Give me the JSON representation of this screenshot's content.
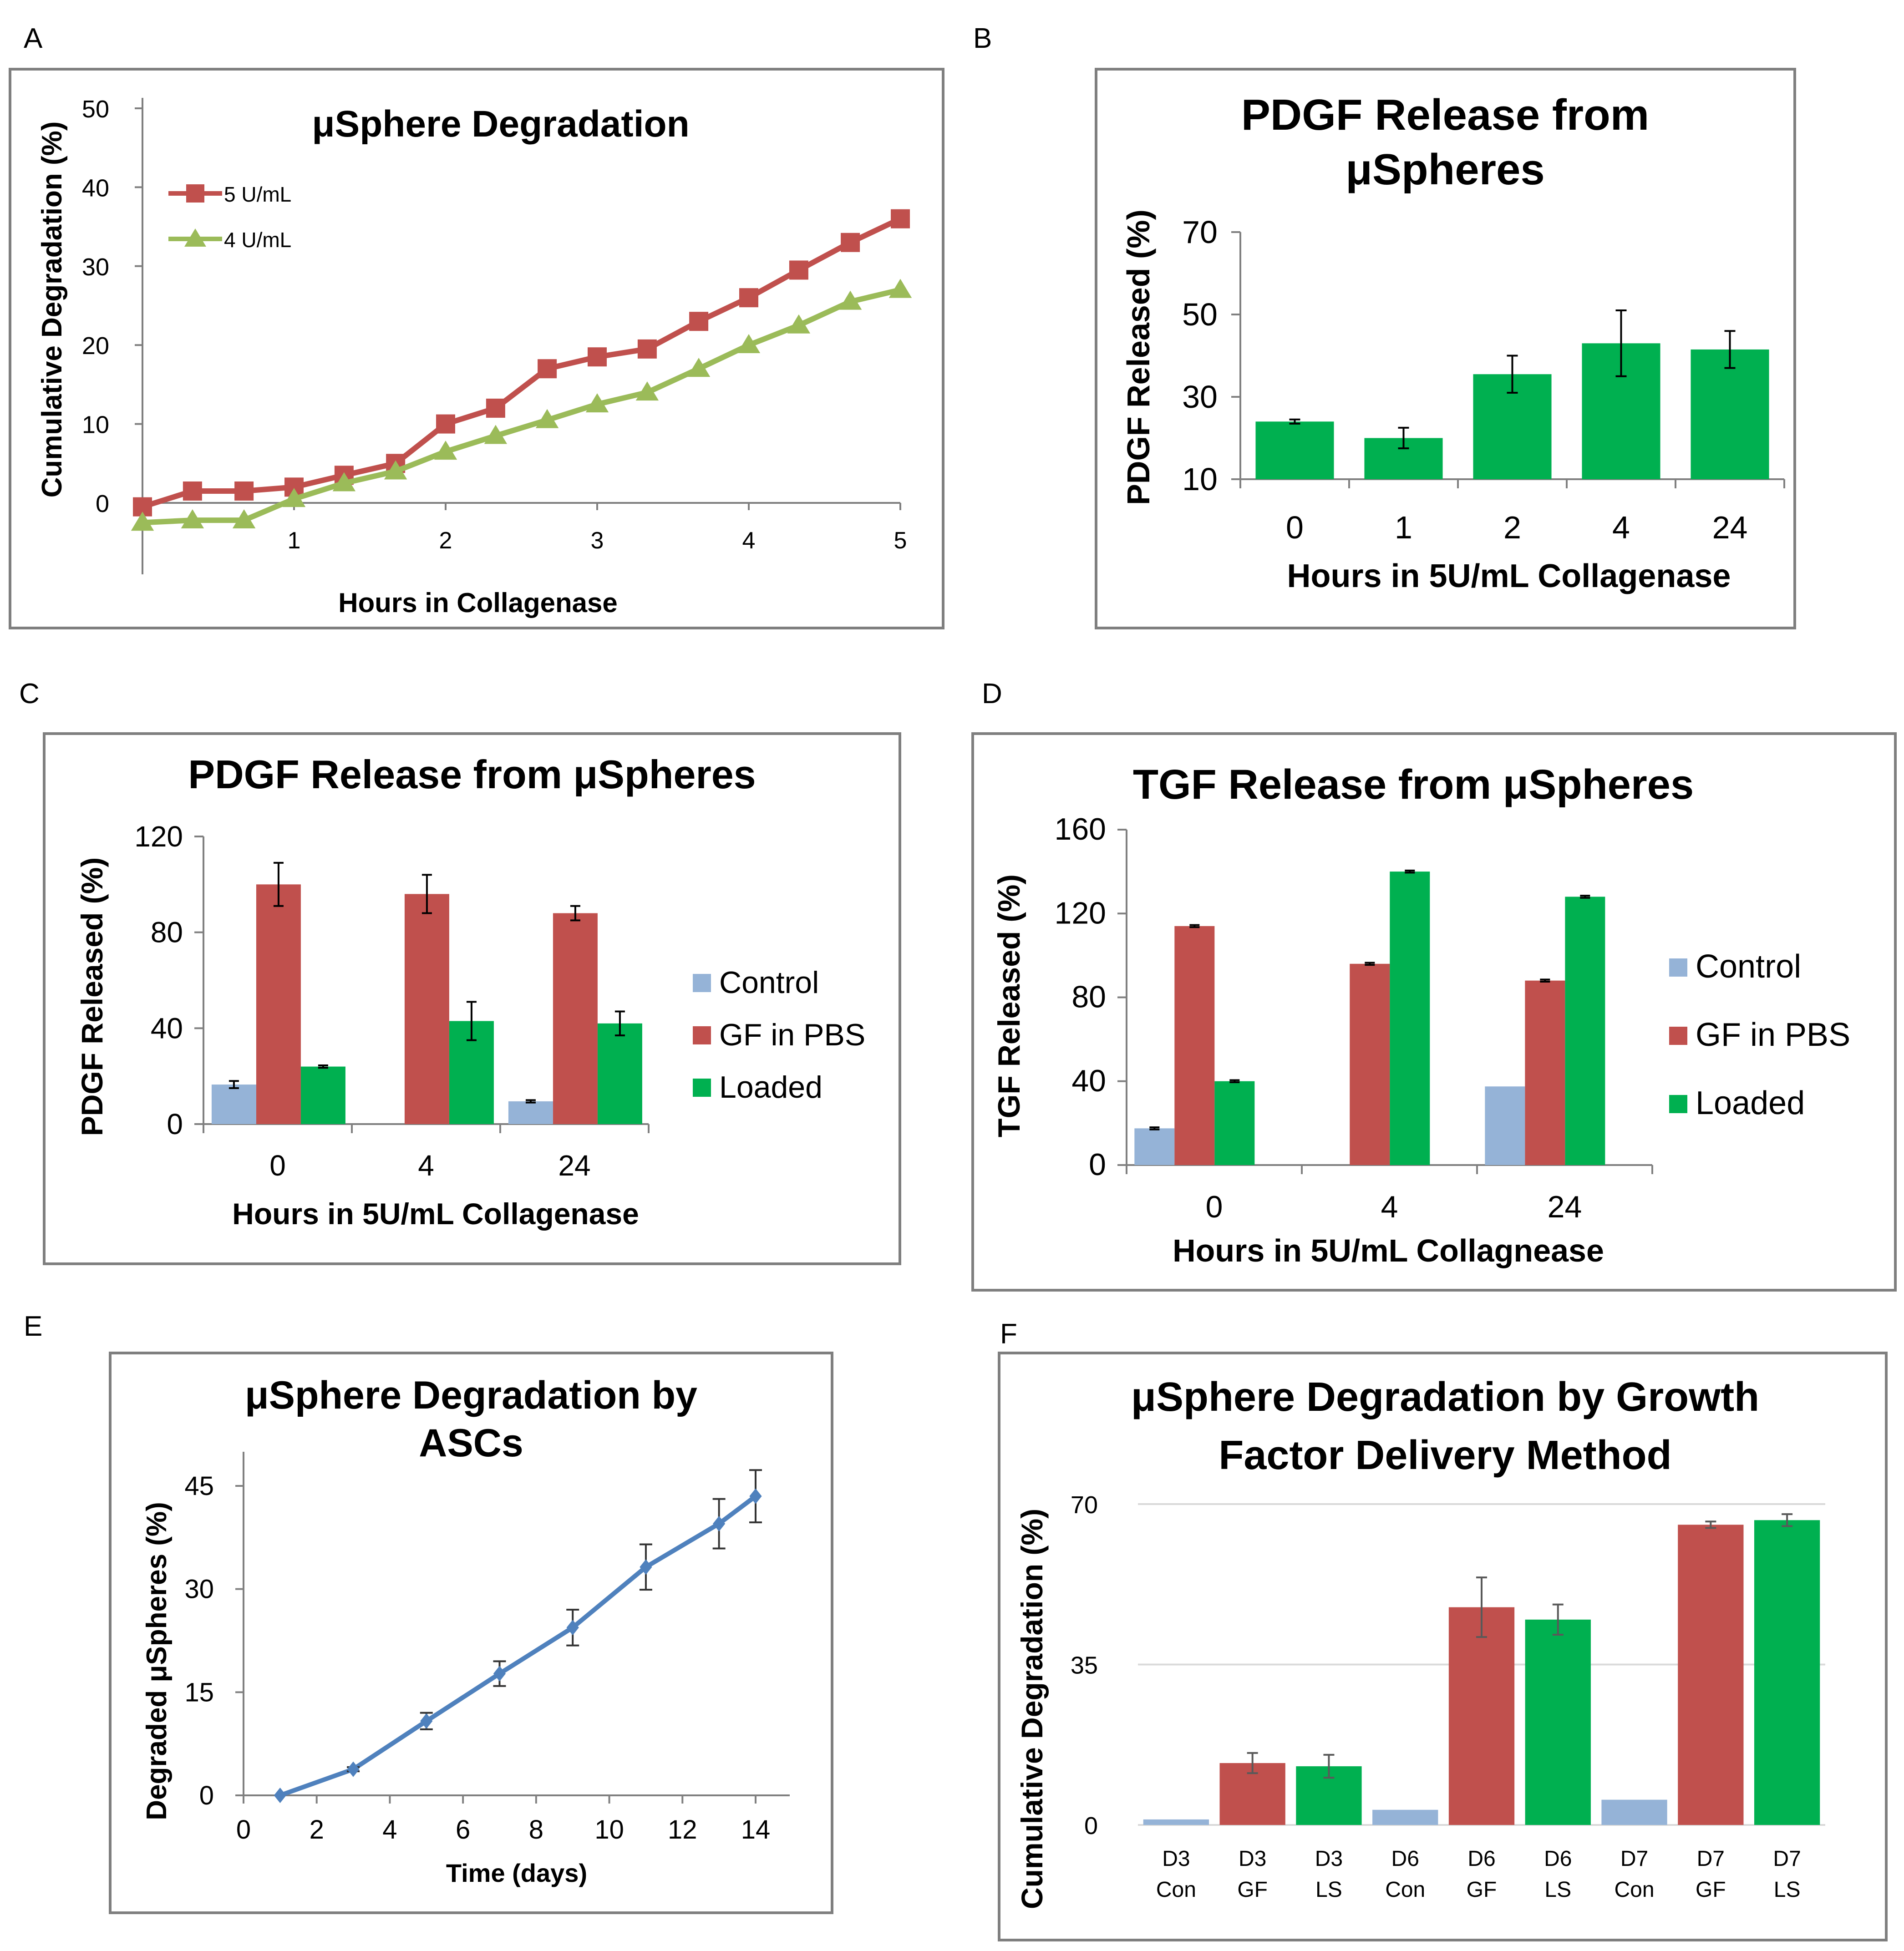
{
  "panel_labels": [
    "A",
    "B",
    "C",
    "D",
    "E",
    "F"
  ],
  "chart_data": [
    {
      "id": "A",
      "type": "line",
      "title": "μSphere Degradation",
      "xlabel": "Hours in Collagenase",
      "ylabel": "Cumulative Degradation (%)",
      "xlim": [
        0,
        5
      ],
      "ylim": [
        -4,
        50
      ],
      "xticks": [
        "0",
        "1",
        "2",
        "3",
        "4",
        "5"
      ],
      "yticks": [
        "0",
        "10",
        "20",
        "30",
        "40",
        "50"
      ],
      "legend_position": "top-left",
      "series": [
        {
          "name": "5 U/mL",
          "color": "#c0504d",
          "marker": "square",
          "x": [
            0,
            0.33,
            0.67,
            1,
            1.33,
            1.67,
            2,
            2.33,
            2.67,
            3,
            3.33,
            3.67,
            4,
            4.33,
            4.67,
            5
          ],
          "y": [
            -0.5,
            1.5,
            1.5,
            2,
            3.5,
            5,
            10,
            12,
            17,
            18.5,
            19.5,
            23,
            26,
            29.5,
            33,
            36
          ]
        },
        {
          "name": "4 U/mL",
          "color": "#9bbb59",
          "marker": "triangle",
          "x": [
            0,
            0.33,
            0.67,
            1,
            1.33,
            1.67,
            2,
            2.33,
            2.67,
            3,
            3.33,
            3.67,
            4,
            4.33,
            4.67,
            5
          ],
          "y": [
            -2.5,
            -2.2,
            -2.2,
            0.5,
            2.5,
            4,
            6.5,
            8.5,
            10.5,
            12.5,
            14,
            17,
            20,
            22.5,
            25.5,
            27
          ]
        }
      ]
    },
    {
      "id": "B",
      "type": "bar",
      "title": [
        "PDGF Release from",
        "μSpheres"
      ],
      "xlabel": "Hours in 5U/mL Collagenase",
      "ylabel": "PDGF Released (%)",
      "ylim": [
        10,
        70
      ],
      "yticks": [
        "10",
        "30",
        "50",
        "70"
      ],
      "categories": [
        "0",
        "1",
        "2",
        "4",
        "24"
      ],
      "series": [
        {
          "name": "Loaded",
          "color": "#00b050",
          "values": [
            24,
            20,
            35.5,
            43,
            41.5
          ],
          "errors": [
            0.5,
            2.5,
            4.5,
            8,
            4.5
          ]
        }
      ]
    },
    {
      "id": "C",
      "type": "bar",
      "title": "PDGF Release from μSpheres",
      "xlabel": "Hours in 5U/mL Collagenase",
      "ylabel": "PDGF Released (%)",
      "ylim": [
        0,
        120
      ],
      "yticks": [
        "0",
        "40",
        "80",
        "120"
      ],
      "categories": [
        "0",
        "4",
        "24"
      ],
      "legend_position": "right",
      "series": [
        {
          "name": "Control",
          "color": "#95b3d7",
          "values": [
            16.5,
            0,
            9.5
          ],
          "errors": [
            1.5,
            0,
            0.5
          ]
        },
        {
          "name": "GF in PBS",
          "color": "#c0504d",
          "values": [
            100,
            96,
            88
          ],
          "errors": [
            9,
            8,
            3
          ]
        },
        {
          "name": "Loaded",
          "color": "#00b050",
          "values": [
            24,
            43,
            42
          ],
          "errors": [
            0.5,
            8,
            5
          ]
        }
      ]
    },
    {
      "id": "D",
      "type": "bar",
      "title": "TGF Release from μSpheres",
      "xlabel": "Hours in 5U/mL Collagnease",
      "ylabel": "TGF Released (%)",
      "ylim": [
        0,
        160
      ],
      "yticks": [
        "0",
        "40",
        "80",
        "120",
        "160"
      ],
      "categories": [
        "0",
        "4",
        "24"
      ],
      "legend_position": "right",
      "series": [
        {
          "name": "Control",
          "color": "#95b3d7",
          "values": [
            17.5,
            0,
            37.5
          ],
          "errors": [
            0.5,
            0,
            0
          ]
        },
        {
          "name": "GF in PBS",
          "color": "#c0504d",
          "values": [
            114,
            96,
            88
          ],
          "errors": [
            0.5,
            0.5,
            0.5
          ]
        },
        {
          "name": "Loaded",
          "color": "#00b050",
          "values": [
            40,
            140,
            128
          ],
          "errors": [
            0.5,
            0.5,
            0.5
          ]
        }
      ]
    },
    {
      "id": "E",
      "type": "line",
      "title": [
        "μSphere Degradation by",
        "ASCs"
      ],
      "xlabel": "Time (days)",
      "ylabel": "Degraded μSpheres (%)",
      "xlim": [
        0,
        14
      ],
      "ylim": [
        0,
        45
      ],
      "xticks": [
        "0",
        "2",
        "4",
        "6",
        "8",
        "10",
        "12",
        "14"
      ],
      "yticks": [
        "0",
        "15",
        "30",
        "45"
      ],
      "series": [
        {
          "name": "ASCs",
          "color": "#4f81bd",
          "marker": "diamond",
          "x": [
            1,
            3,
            5,
            7,
            9,
            11,
            13,
            14
          ],
          "y": [
            0,
            3.8,
            10.8,
            17.7,
            24.4,
            33.2,
            39.5,
            43.5
          ],
          "errors": [
            0,
            0.3,
            1.2,
            1.8,
            2.6,
            3.3,
            3.6,
            3.8
          ]
        }
      ]
    },
    {
      "id": "F",
      "type": "bar",
      "title": [
        "μSphere Degradation by Growth",
        "Factor Delivery Method"
      ],
      "ylabel": "Cumulative Degradation (%)",
      "ylim": [
        0,
        70
      ],
      "yticks": [
        "0",
        "35",
        "70"
      ],
      "grid": true,
      "categories": [
        [
          "D3",
          "Con"
        ],
        [
          "D3",
          "GF"
        ],
        [
          "D3",
          "LS"
        ],
        [
          "D6",
          "Con"
        ],
        [
          "D6",
          "GF"
        ],
        [
          "D6",
          "LS"
        ],
        [
          "D7",
          "Con"
        ],
        [
          "D7",
          "GF"
        ],
        [
          "D7",
          "LS"
        ]
      ],
      "values": [
        1.2,
        13.5,
        12.8,
        3.3,
        47.5,
        44.8,
        5.5,
        65.5,
        66.5
      ],
      "errors": [
        0,
        2.2,
        2.5,
        0,
        6.5,
        3.3,
        0,
        0.7,
        1.3
      ],
      "colors": [
        "#95b3d7",
        "#c0504d",
        "#00b050",
        "#95b3d7",
        "#c0504d",
        "#00b050",
        "#95b3d7",
        "#c0504d",
        "#00b050"
      ]
    }
  ]
}
